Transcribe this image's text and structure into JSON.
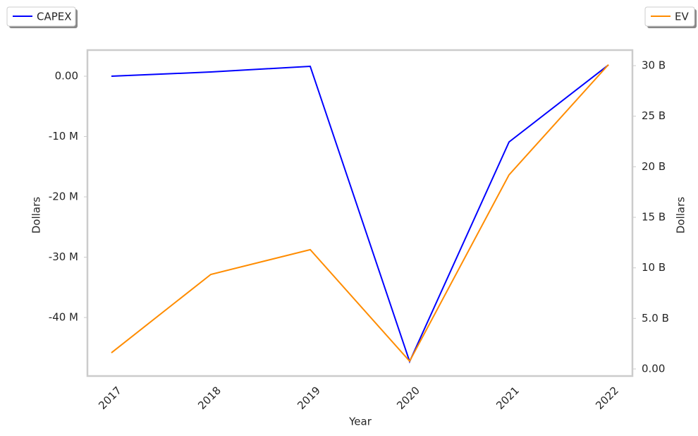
{
  "chart_data": {
    "type": "line",
    "x_label": "Year",
    "y_label": "Dollars",
    "y2_label": "Dollars",
    "categories": [
      "2017",
      "2018",
      "2019",
      "2020",
      "2021",
      "2022"
    ],
    "series": [
      {
        "name": "CAPEX",
        "color": "#0000ff",
        "axis": "y",
        "legend_loc": "upper left",
        "values": [
          0,
          700000,
          1640000,
          -47300000,
          -10900000,
          1870000
        ]
      },
      {
        "name": "EV",
        "color": "#ff8c00",
        "axis": "y2",
        "legend_loc": "upper right",
        "values": [
          1600000000,
          9350000000,
          11800000000,
          770000000,
          19200000000,
          30100000000
        ]
      }
    ],
    "ylim": [
      -49700000,
      4330000
    ],
    "yticks": [
      {
        "value": -40000000,
        "label": "-40 M"
      },
      {
        "value": -30000000,
        "label": "-30 M"
      },
      {
        "value": -20000000,
        "label": "-20 M"
      },
      {
        "value": -10000000,
        "label": "-10 M"
      },
      {
        "value": 0,
        "label": "0.00"
      }
    ],
    "y2lim": [
      -700000000,
      31540000000
    ],
    "y2ticks": [
      {
        "value": 0,
        "label": "0.00"
      },
      {
        "value": 5000000000,
        "label": "5.0 B"
      },
      {
        "value": 10000000000,
        "label": "10 B"
      },
      {
        "value": 15000000000,
        "label": "15 B"
      },
      {
        "value": 20000000000,
        "label": "20 B"
      },
      {
        "value": 25000000000,
        "label": "25 B"
      },
      {
        "value": 30000000000,
        "label": "30 B"
      }
    ],
    "grid": false
  }
}
